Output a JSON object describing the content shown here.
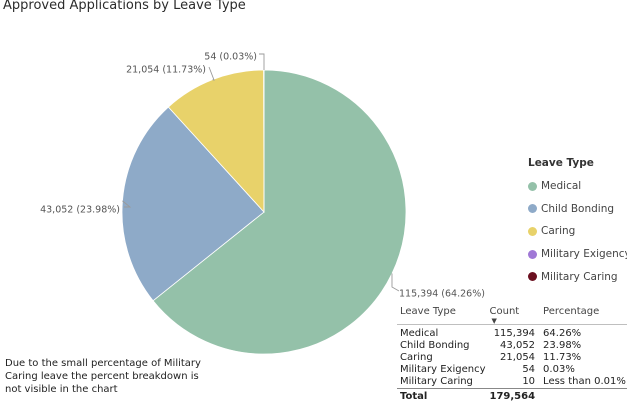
{
  "chart_data": {
    "type": "pie",
    "title": "Approved Applications by Leave Type",
    "slices": [
      {
        "name": "Medical",
        "value": 115394,
        "label": "115,394 (64.26%)",
        "color": "#94c1a9"
      },
      {
        "name": "Child Bonding",
        "value": 43052,
        "label": "43,052 (23.98%)",
        "color": "#8eaac8"
      },
      {
        "name": "Caring",
        "value": 21054,
        "label": "21,054 (11.73%)",
        "color": "#e8d26a"
      },
      {
        "name": "Military Exigency",
        "value": 54,
        "label": "54 (0.03%)",
        "color": "#a078d6"
      },
      {
        "name": "Military Caring",
        "value": 10,
        "label": "",
        "color": "#6b1020"
      }
    ],
    "legend": {
      "title": "Leave Type",
      "position": "right"
    }
  },
  "note": "Due to the small percentage of Military Caring leave the percent breakdown is not visible in the chart",
  "table": {
    "headers": [
      "Leave Type",
      "Count",
      "Percentage"
    ],
    "sort_indicator": "▼",
    "rows": [
      [
        "Medical",
        "115,394",
        "64.26%"
      ],
      [
        "Child Bonding",
        "43,052",
        "23.98%"
      ],
      [
        "Caring",
        "21,054",
        "11.73%"
      ],
      [
        "Military Exigency",
        "54",
        "0.03%"
      ],
      [
        "Military Caring",
        "10",
        "Less than 0.01%"
      ]
    ],
    "total": [
      "Total",
      "179,564",
      ""
    ]
  }
}
